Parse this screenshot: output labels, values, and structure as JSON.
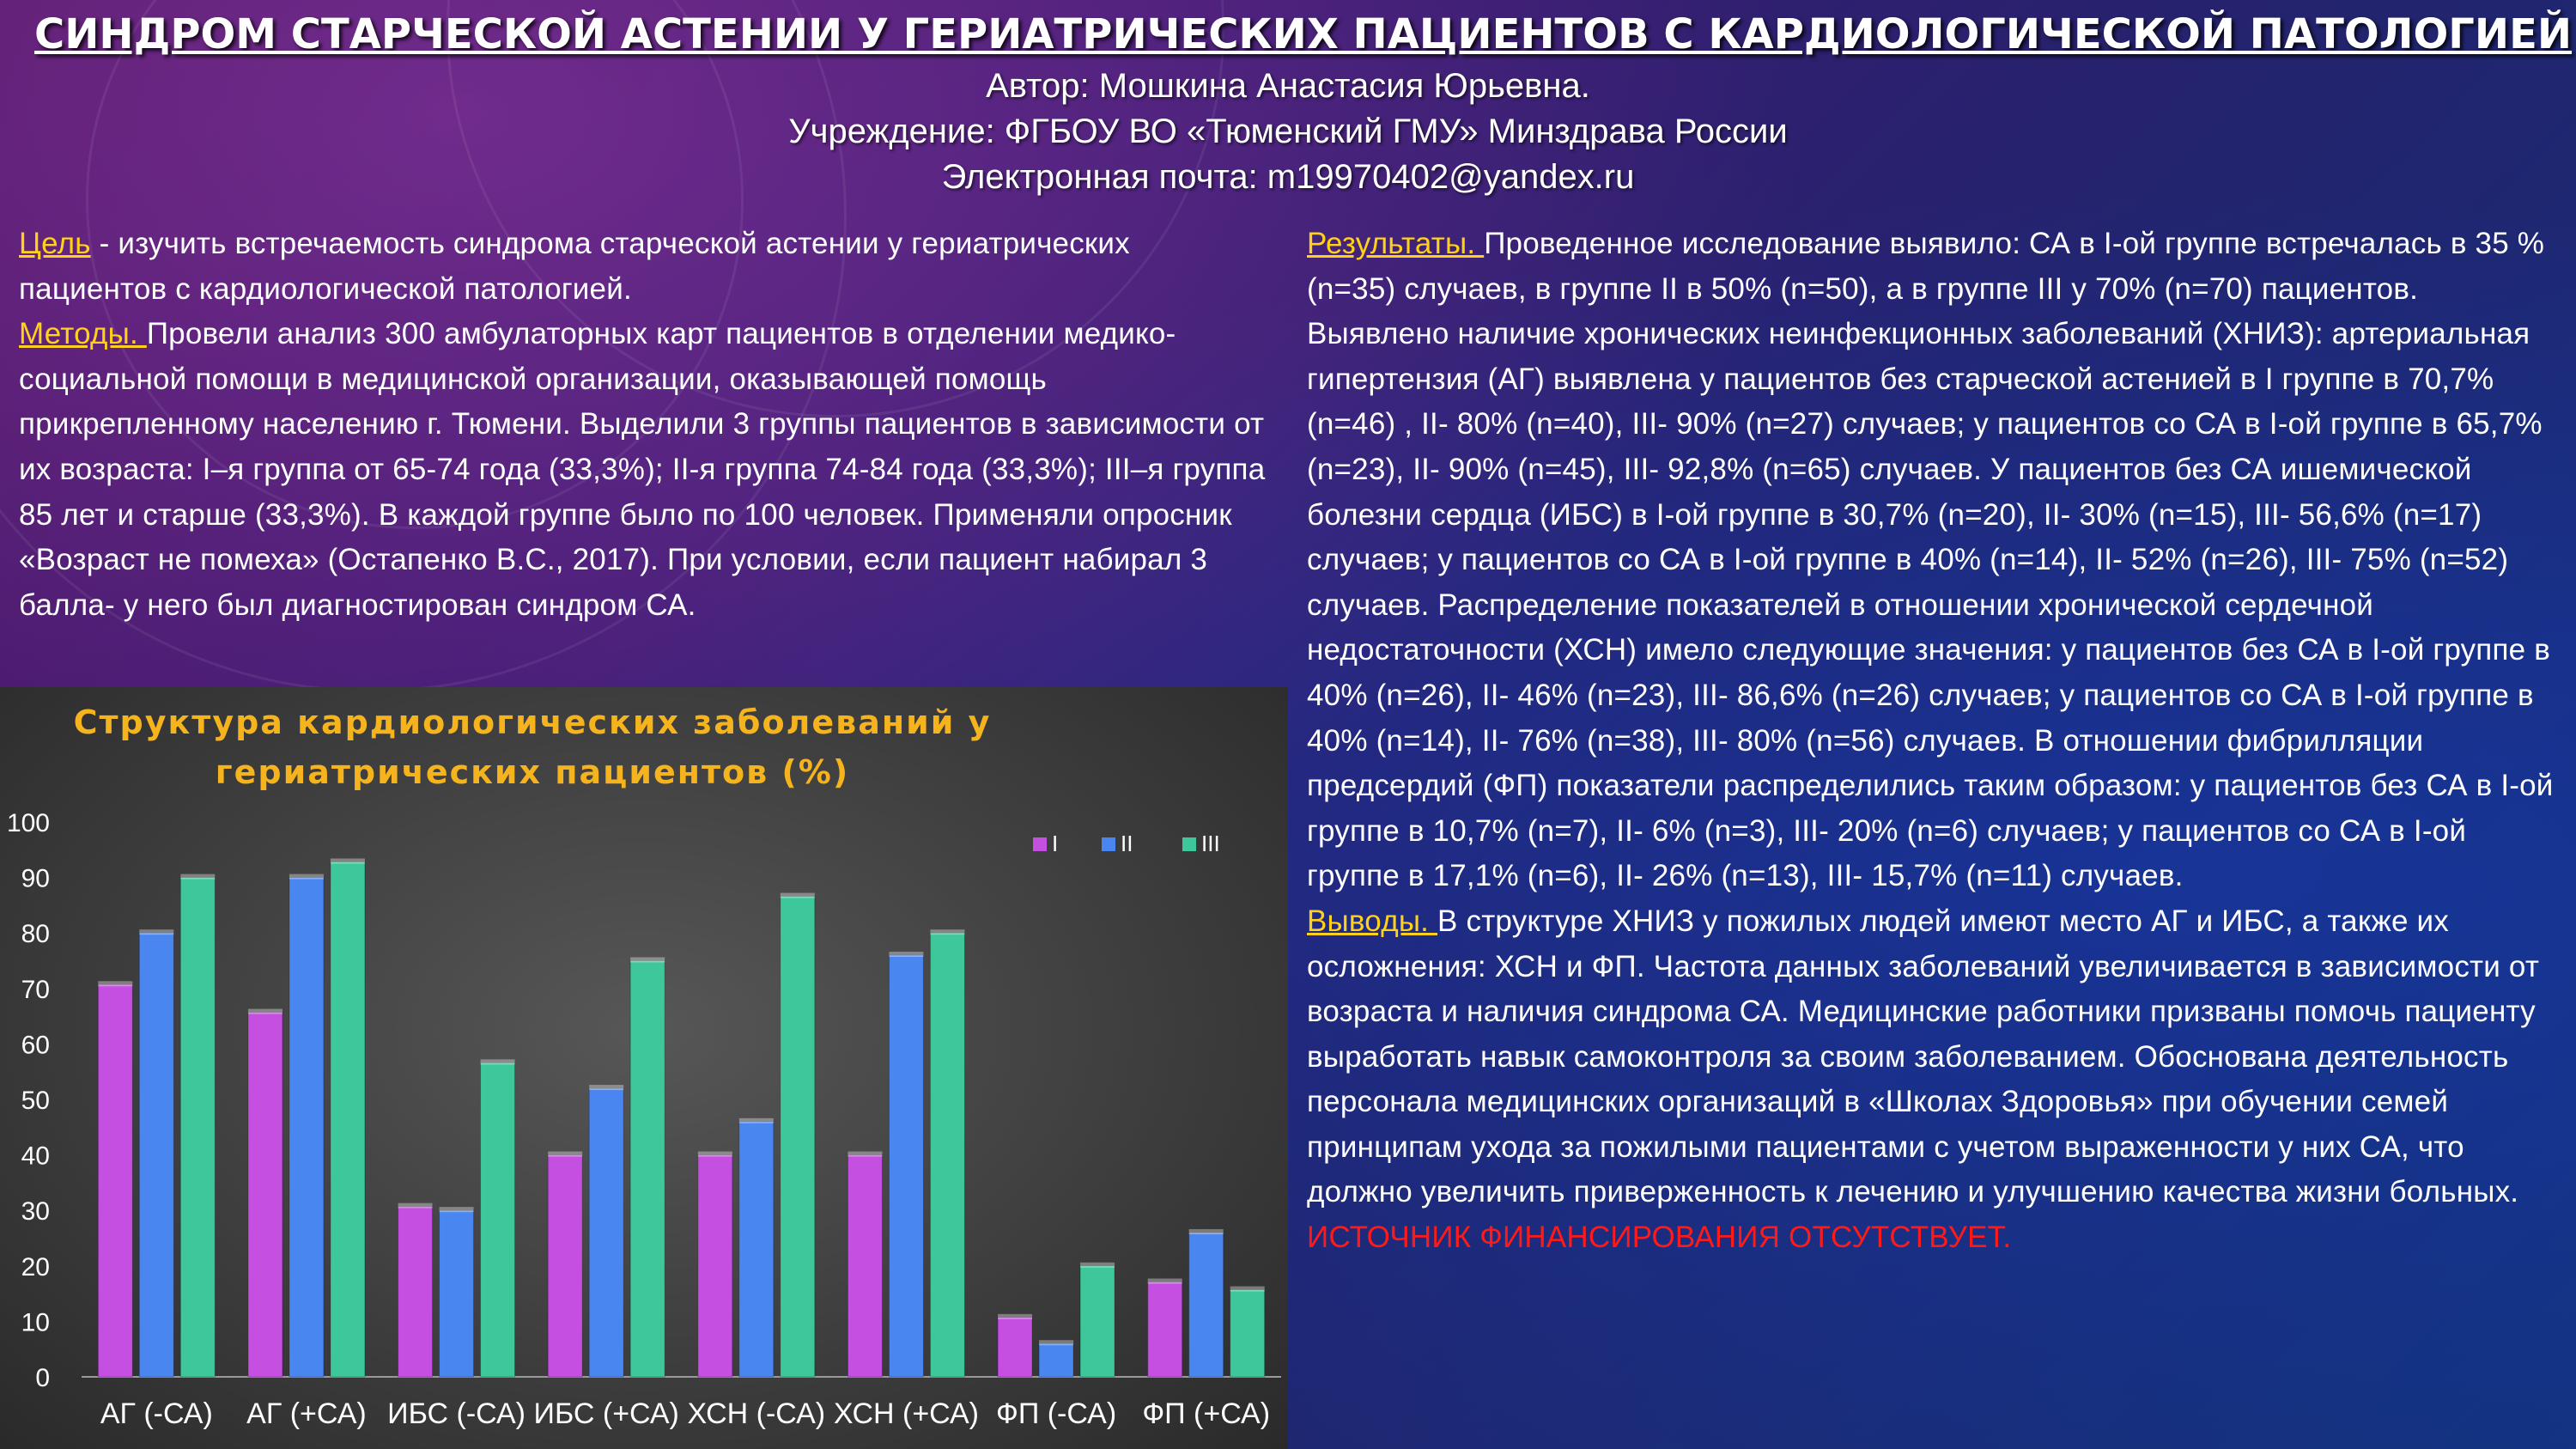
{
  "header": {
    "title": "СИНДРОМ СТАРЧЕСКОЙ АСТЕНИИ У ГЕРИАТРИЧЕСКИХ ПАЦИЕНТОВ С КАРДИОЛОГИЧЕСКОЙ ПАТОЛОГИЕЙ",
    "author": "Автор: Мошкина Анастасия Юрьевна.",
    "institution": "Учреждение: ФГБОУ ВО «Тюменский ГМУ» Минздрава России",
    "email": "Электронная почта: m19970402@yandex.ru"
  },
  "left": {
    "goal_label": "Цель",
    "goal_text": " - изучить встречаемость синдрома старческой астении у гериатрических пациентов с кардиологической патологией.",
    "methods_label": "Методы. ",
    "methods_text": "Провели анализ 300 амбулаторных карт пациентов в отделении медико-социальной помощи в медицинской организации, оказывающей помощь прикрепленному населению г. Тюмени. Выделили 3 группы пациентов в зависимости от их возраста:  I–я группа  от 65-74 года (33,3%); II-я группа  74-84 года (33,3%); III–я группа  85 лет и старше (33,3%). В каждой группе было по 100 человек. Применяли опросник «Возраст не помеха» (Остапенко В.С., 2017).  При условии, если пациент набирал 3 балла- у него был диагностирован синдром СА."
  },
  "right": {
    "results_label": "Результаты. ",
    "results_text": "Проведенное исследование выявило: СА в I-ой группе встречалась  в 35 % (n=35) случаев, в группе II в 50% (n=50), а в группе III у 70% (n=70) пациентов. Выявлено наличие хронических неинфекционных заболеваний (ХНИЗ): артериальная гипертензия (АГ) выявлена у пациентов без старческой астенией в I группе в 70,7% (n=46) , II- 80% (n=40),  III- 90% (n=27) случаев; у пациентов со СА в I-ой группе в 65,7% (n=23), II- 90% (n=45), III- 92,8% (n=65) случаев. У пациентов без СА ишемической болезни сердца (ИБС) в I-ой группе в 30,7% (n=20), II- 30% (n=15), III- 56,6% (n=17)  случаев; у пациентов со СА в I-ой группе в 40% (n=14), II- 52% (n=26), III- 75% (n=52) случаев. Распределение показателей в отношении хронической сердечной недостаточности (ХСН) имело следующие значения: у пациентов без СА в I-ой группе в 40% (n=26), II- 46% (n=23),  III- 86,6% (n=26) случаев; у пациентов со СА  в I-ой группе в 40% (n=14), II- 76% (n=38),  III- 80% (n=56) случаев. В отношении фибрилляции предсердий (ФП) показатели распределились таким образом: у пациентов без СА в I-ой группе в 10,7% (n=7), II- 6% (n=3), III- 20% (n=6) случаев; у пациентов со СА в I-ой группе в 17,1% (n=6),  II- 26% (n=13),  III- 15,7%  (n=11) случаев.",
    "conclusions_label": "Выводы. ",
    "conclusions_text": "В структуре ХНИЗ у пожилых людей имеют место АГ и ИБС, а также их осложнения: ХСН и ФП. Частота данных заболеваний увеличивается в зависимости от возраста и наличия синдрома СА. Медицинские работники призваны помочь пациенту выработать навык самоконтроля за своим заболеванием.  Обоснована деятельность персонала медицинских организаций в «Школах Здоровья» при обучении семей принципам ухода за пожилыми пациентами с учетом выраженности у них СА, что должно увеличить приверженность к лечению и улучшению качества жизни больных.",
    "funding": "ИСТОЧНИК ФИНАНСИРОВАНИЯ ОТСУТСТВУЕТ."
  },
  "colors": {
    "label": "#ffd11a",
    "funding": "#ff1a1a",
    "chart_title": "#f5b41e"
  },
  "chart_data": {
    "type": "bar",
    "title_lines": [
      "Структура кардиологических заболеваний у",
      "гериатрических пациентов (%)"
    ],
    "categories": [
      "АГ (-СА)",
      "АГ (+СА)",
      "ИБС (-СА)",
      "ИБС (+СА)",
      "ХСН (-СА)",
      "ХСН (+СА)",
      "ФП (-СА)",
      "ФП (+СА)"
    ],
    "series": [
      {
        "name": "I",
        "color": "#c44fe0",
        "values": [
          70.7,
          65.7,
          30.7,
          40,
          40,
          40,
          10.7,
          17.1
        ]
      },
      {
        "name": "II",
        "color": "#4a86f0",
        "values": [
          80,
          90,
          30,
          52,
          46,
          76,
          6,
          26
        ]
      },
      {
        "name": "III",
        "color": "#3ec79a",
        "values": [
          90,
          92.8,
          56.6,
          75,
          86.6,
          80,
          20,
          15.7
        ]
      }
    ],
    "ylim": [
      0,
      100
    ],
    "yticks": [
      "0",
      "10",
      "20",
      "30",
      "40",
      "50",
      "60",
      "70",
      "80",
      "90",
      "100"
    ],
    "grid": false,
    "legend": "top-right"
  }
}
